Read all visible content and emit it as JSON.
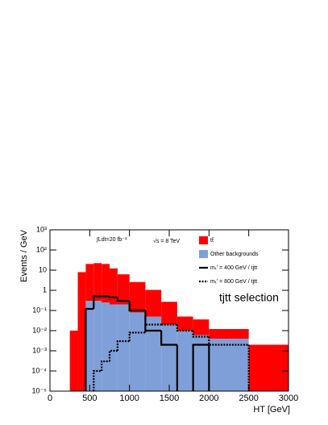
{
  "chart_data": {
    "type": "histogram",
    "bins": [
      250,
      350,
      450,
      550,
      650,
      750,
      850,
      1000,
      1200,
      1400,
      1600,
      1800,
      2000,
      2500,
      3000
    ],
    "series": [
      {
        "name": "tt̄",
        "color": "#ff0000",
        "histtype": "fill",
        "values": [
          0.01,
          8,
          20,
          22,
          20,
          12,
          6,
          2.5,
          1,
          0.25,
          0.04,
          0.03,
          0.008,
          0.002
        ]
      },
      {
        "name": "Other backgrounds",
        "color": "#7f9fd8",
        "histtype": "fill",
        "values": [
          null,
          null,
          0.3,
          0.3,
          0.25,
          0.2,
          0.2,
          0.08,
          0.05,
          0.02,
          0.01,
          0.006,
          0.004,
          null
        ]
      },
      {
        "name": "mₜ′ = 400 GeV / tjtt",
        "color": "#000000",
        "histtype": "step",
        "linestyle": "solid",
        "values": [
          null,
          null,
          0.12,
          0.5,
          0.5,
          0.45,
          0.3,
          0.1,
          0.01,
          0.002,
          null,
          0.002,
          null,
          null
        ]
      },
      {
        "name": "mₜ′ = 800 GeV / tjtt",
        "color": "#000000",
        "histtype": "step",
        "linestyle": "dotted",
        "values": [
          null,
          null,
          null,
          0.0001,
          0.0003,
          0.001,
          0.003,
          0.008,
          0.02,
          0.02,
          0.01,
          0.005,
          0.002,
          null
        ]
      }
    ],
    "xlabel": "HT [GeV]",
    "ylabel": "Events / GeV",
    "annotations": [
      "∫Ldt=20 fb⁻¹",
      "√s = 8 TeV",
      "tjtt selection"
    ],
    "xlim": [
      0,
      3000
    ],
    "xticks": [
      0,
      500,
      1000,
      1500,
      2000,
      2500,
      3000
    ],
    "ylim": [
      1e-05,
      1000
    ],
    "yscale": "log",
    "yticks": [
      {
        "value": 1e-05,
        "label": "10⁻⁵"
      },
      {
        "value": 0.0001,
        "label": "10⁻⁴"
      },
      {
        "value": 0.001,
        "label": "10⁻³"
      },
      {
        "value": 0.01,
        "label": "10⁻²"
      },
      {
        "value": 0.1,
        "label": "10⁻¹"
      },
      1,
      10,
      {
        "value": 100,
        "label": "10²"
      },
      {
        "value": 1000,
        "label": "10³"
      }
    ],
    "legend": "top right"
  }
}
